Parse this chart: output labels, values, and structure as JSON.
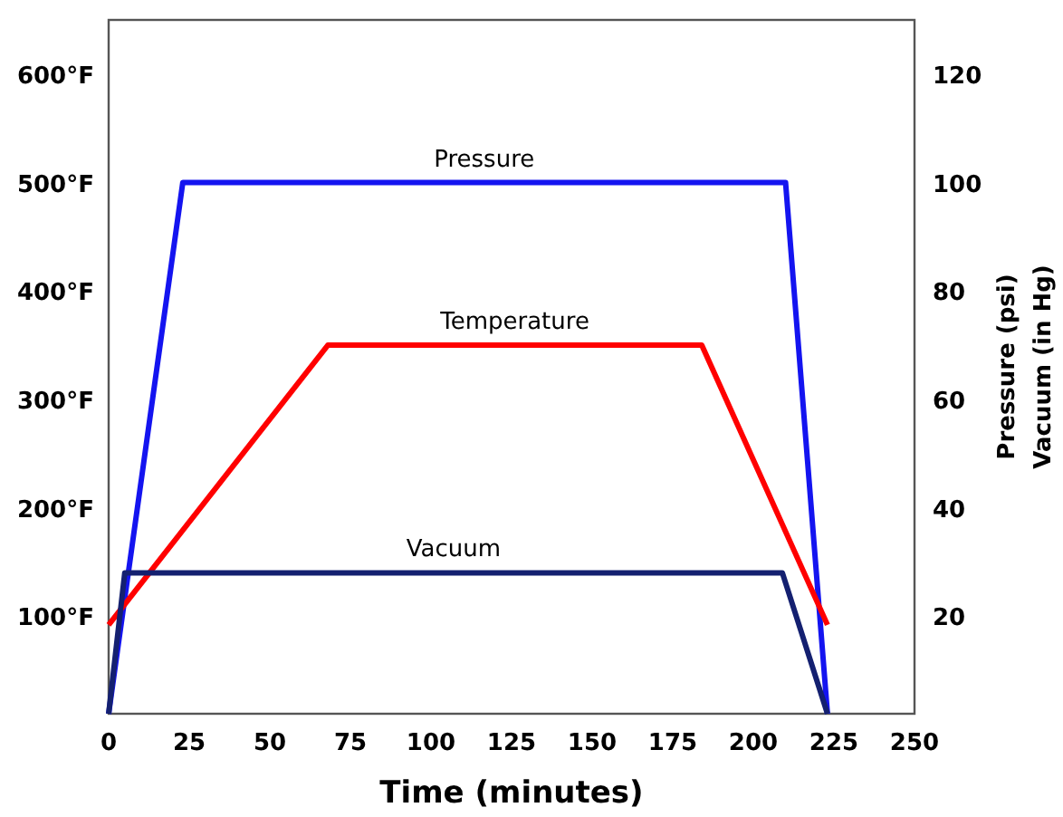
{
  "chart_data": {
    "type": "line",
    "xlabel": "Time  (minutes)",
    "ylabel": null,
    "y2label": "Pressure  (psi)",
    "y3label": "Vacuum (in Hg)",
    "xlim": [
      0,
      250
    ],
    "xticks": [
      0,
      25,
      50,
      75,
      100,
      125,
      150,
      175,
      200,
      225,
      250
    ],
    "ylim": [
      10,
      650
    ],
    "yticks": [
      {
        "value": 100,
        "label": "100°F"
      },
      {
        "value": 200,
        "label": "200°F"
      },
      {
        "value": 300,
        "label": "300°F"
      },
      {
        "value": 400,
        "label": "400°F"
      },
      {
        "value": 500,
        "label": "500°F"
      },
      {
        "value": 600,
        "label": "600°F"
      }
    ],
    "y2lim": [
      2,
      130
    ],
    "y2ticks": [
      20,
      40,
      60,
      80,
      100,
      120
    ],
    "grid": false,
    "marker": "none",
    "line_style": "solid",
    "series": [
      {
        "name": "Pressure",
        "color": "#1414f0",
        "axis": "y2",
        "x": [
          0,
          23,
          210,
          223
        ],
        "values": [
          2,
          100,
          100,
          2
        ]
      },
      {
        "name": "Temperature",
        "color": "#ff0000",
        "x": [
          0,
          68,
          184,
          223
        ],
        "values": [
          92,
          350,
          350,
          92
        ]
      },
      {
        "name": "Vacuum",
        "color": "#142070",
        "axis": "y2",
        "x": [
          0,
          5,
          209,
          223
        ],
        "values": [
          2,
          28,
          28,
          2
        ]
      }
    ]
  }
}
